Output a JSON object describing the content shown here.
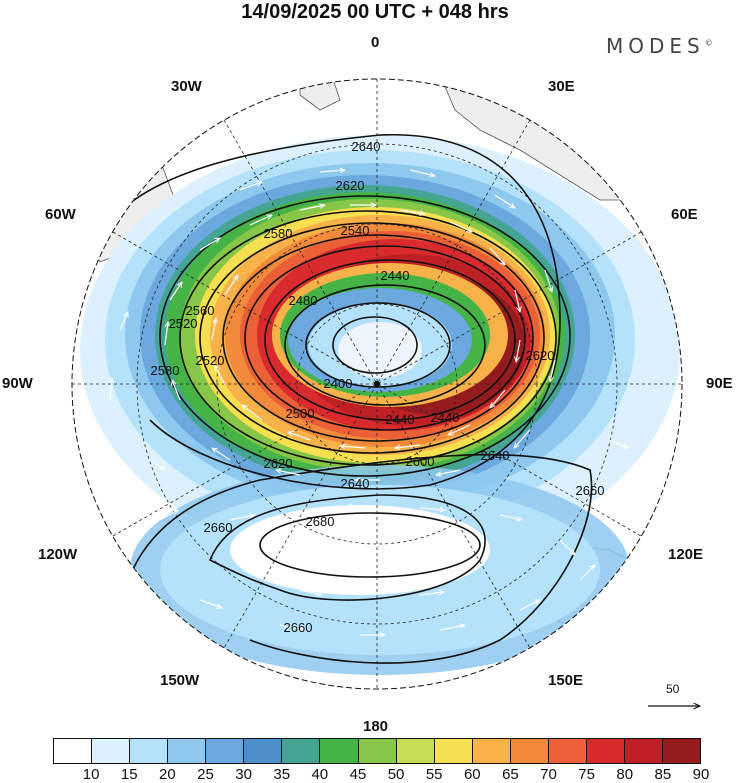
{
  "header": {
    "title": "14/09/2025  00 UTC  + 048 hrs",
    "brand": "MODES",
    "brand_mark": "©"
  },
  "map": {
    "longitude_labels": [
      "0",
      "30E",
      "60E",
      "90E",
      "120E",
      "150E",
      "180",
      "150W",
      "120W",
      "90W",
      "60W",
      "30W"
    ],
    "contour_labels": [
      "2400",
      "2440",
      "2440",
      "2480",
      "2500",
      "2520",
      "2540",
      "2560",
      "2580",
      "2580",
      "2600",
      "2620",
      "2620",
      "2640",
      "2640",
      "2640",
      "2660",
      "2660",
      "2660",
      "2680",
      "2620",
      "2520",
      "2440"
    ],
    "wind_scale_label": "50"
  },
  "colorbar": {
    "colors": [
      "#ffffff",
      "#dcf1fd",
      "#b4e2fa",
      "#8ec8ee",
      "#6aa8dd",
      "#4d8fc9",
      "#45a593",
      "#46b346",
      "#87c647",
      "#c6dc53",
      "#f6df50",
      "#f7b24a",
      "#f28a3b",
      "#ec6038",
      "#d92b2d",
      "#bf2026",
      "#941b1e"
    ],
    "ticks": [
      "10",
      "15",
      "20",
      "25",
      "30",
      "35",
      "40",
      "45",
      "50",
      "55",
      "60",
      "65",
      "70",
      "75",
      "80",
      "85",
      "90"
    ]
  }
}
